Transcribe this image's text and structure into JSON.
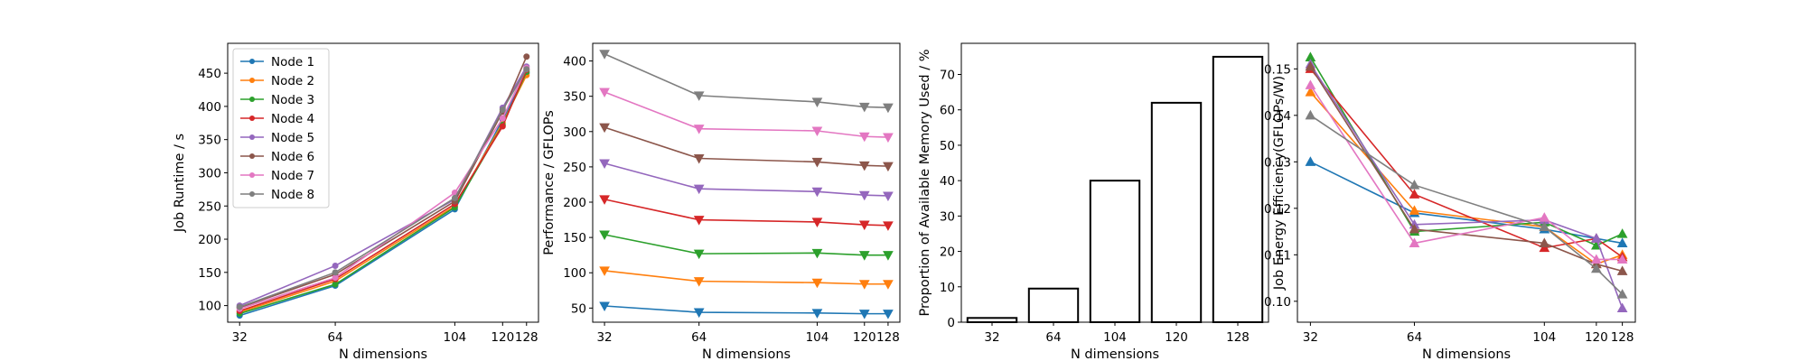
{
  "chart_data": [
    {
      "type": "line",
      "xlabel": "N dimensions",
      "ylabel": "Job Runtime / s",
      "x": [
        32,
        64,
        104,
        120,
        128
      ],
      "xlim": [
        28,
        132
      ],
      "ylim": [
        75,
        495
      ],
      "yticks": [
        100,
        150,
        200,
        250,
        300,
        350,
        400,
        450
      ],
      "marker": "circle",
      "legend": "upper-left",
      "series": [
        {
          "name": "Node 1",
          "color": "#1f77b4",
          "values": [
            85,
            130,
            245,
            380,
            450
          ]
        },
        {
          "name": "Node 2",
          "color": "#ff7f0e",
          "values": [
            90,
            137,
            250,
            375,
            447
          ]
        },
        {
          "name": "Node 3",
          "color": "#2ca02c",
          "values": [
            88,
            132,
            248,
            372,
            452
          ]
        },
        {
          "name": "Node 4",
          "color": "#d62728",
          "values": [
            92,
            140,
            253,
            370,
            455
          ]
        },
        {
          "name": "Node 5",
          "color": "#9467bd",
          "values": [
            100,
            160,
            260,
            398,
            460
          ]
        },
        {
          "name": "Node 6",
          "color": "#8c564b",
          "values": [
            97,
            147,
            257,
            392,
            475
          ]
        },
        {
          "name": "Node 7",
          "color": "#e377c2",
          "values": [
            95,
            142,
            270,
            382,
            458
          ]
        },
        {
          "name": "Node 8",
          "color": "#7f7f7f",
          "values": [
            98,
            150,
            262,
            395,
            456
          ]
        }
      ]
    },
    {
      "type": "line",
      "xlabel": "N dimensions",
      "ylabel": "Performance / GFLOPs",
      "x": [
        32,
        64,
        104,
        120,
        128
      ],
      "xlim": [
        28,
        132
      ],
      "ylim": [
        30,
        425
      ],
      "yticks": [
        50,
        100,
        150,
        200,
        250,
        300,
        350,
        400
      ],
      "marker": "triangle-down",
      "series": [
        {
          "name": "Node 1",
          "color": "#1f77b4",
          "values": [
            53,
            44,
            43,
            42,
            42
          ]
        },
        {
          "name": "Node 2",
          "color": "#ff7f0e",
          "values": [
            103,
            88,
            86,
            84,
            84
          ]
        },
        {
          "name": "Node 3",
          "color": "#2ca02c",
          "values": [
            154,
            127,
            128,
            125,
            125
          ]
        },
        {
          "name": "Node 4",
          "color": "#d62728",
          "values": [
            204,
            175,
            172,
            168,
            167
          ]
        },
        {
          "name": "Node 5",
          "color": "#9467bd",
          "values": [
            255,
            219,
            215,
            210,
            209
          ]
        },
        {
          "name": "Node 6",
          "color": "#8c564b",
          "values": [
            306,
            262,
            257,
            252,
            251
          ]
        },
        {
          "name": "Node 7",
          "color": "#e377c2",
          "values": [
            356,
            304,
            301,
            293,
            292
          ]
        },
        {
          "name": "Node 8",
          "color": "#7f7f7f",
          "values": [
            410,
            351,
            342,
            335,
            334
          ]
        }
      ]
    },
    {
      "type": "bar",
      "xlabel": "N dimensions",
      "ylabel": "Proportion of Available Memory Used / %",
      "categories": [
        "32",
        "64",
        "104",
        "120",
        "128"
      ],
      "values": [
        1.2,
        9.5,
        40,
        62,
        75
      ],
      "ylim": [
        0,
        78.8
      ],
      "yticks": [
        0,
        10,
        20,
        30,
        40,
        50,
        60,
        70
      ],
      "bar_fill": "#ffffff",
      "bar_edge": "#000000"
    },
    {
      "type": "line",
      "xlabel": "N dimensions",
      "ylabel": "Job Energy Efficiency(GFLOPs/W)",
      "x": [
        32,
        64,
        104,
        120,
        128
      ],
      "xlim": [
        28,
        132
      ],
      "ylim": [
        0.0955,
        0.1555
      ],
      "yticks": [
        0.1,
        0.11,
        0.12,
        0.13,
        0.14,
        0.15
      ],
      "ytick_labels": [
        "0.10",
        "0.11",
        "0.12",
        "0.13",
        "0.14",
        "0.15"
      ],
      "marker": "triangle-up",
      "series": [
        {
          "name": "Node 1",
          "color": "#1f77b4",
          "values": [
            0.13,
            0.119,
            0.1155,
            0.1135,
            0.1125
          ]
        },
        {
          "name": "Node 2",
          "color": "#ff7f0e",
          "values": [
            0.145,
            0.1195,
            0.116,
            0.108,
            0.11
          ]
        },
        {
          "name": "Node 3",
          "color": "#2ca02c",
          "values": [
            0.1525,
            0.115,
            0.117,
            0.112,
            0.1145
          ]
        },
        {
          "name": "Node 4",
          "color": "#d62728",
          "values": [
            0.15,
            0.123,
            0.1115,
            0.1135,
            0.1095
          ]
        },
        {
          "name": "Node 5",
          "color": "#9467bd",
          "values": [
            0.151,
            0.1165,
            0.1175,
            0.1135,
            0.0985
          ]
        },
        {
          "name": "Node 6",
          "color": "#8c564b",
          "values": [
            0.1505,
            0.1155,
            0.1125,
            0.108,
            0.1065
          ]
        },
        {
          "name": "Node 7",
          "color": "#e377c2",
          "values": [
            0.1465,
            0.1125,
            0.118,
            0.109,
            0.109
          ]
        },
        {
          "name": "Node 8",
          "color": "#7f7f7f",
          "values": [
            0.14,
            0.125,
            0.116,
            0.107,
            0.1015
          ]
        }
      ]
    }
  ]
}
